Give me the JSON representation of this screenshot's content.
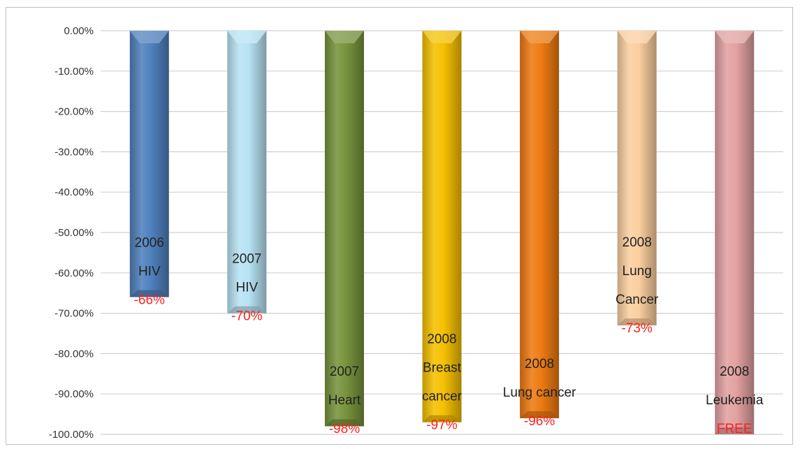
{
  "chart_data": {
    "type": "bar",
    "orientation": "vertical",
    "title": "",
    "xlabel": "",
    "ylabel": "",
    "ylim": [
      -100,
      0
    ],
    "yticks": [
      "0.00%",
      "-10.00%",
      "-20.00%",
      "-30.00%",
      "-40.00%",
      "-50.00%",
      "-60.00%",
      "-70.00%",
      "-80.00%",
      "-90.00%",
      "-100.00%"
    ],
    "grid": true,
    "legend": "none",
    "bars": [
      {
        "label_lines": [
          "2006",
          "HIV"
        ],
        "value_label": "-66%",
        "value": -66,
        "color": "#4f81bd"
      },
      {
        "label_lines": [
          "2007",
          "HIV"
        ],
        "value_label": "-70%",
        "value": -70,
        "color": "#b7e3f3"
      },
      {
        "label_lines": [
          "2007",
          "Heart"
        ],
        "value_label": "-98%",
        "value": -98,
        "color": "#77933c"
      },
      {
        "label_lines": [
          "2008",
          "Breast",
          "cancer"
        ],
        "value_label": "-97%",
        "value": -97,
        "color": "#f5c000"
      },
      {
        "label_lines": [
          "2008",
          "Lung cancer"
        ],
        "value_label": "-96%",
        "value": -96,
        "color": "#ee7b12"
      },
      {
        "label_lines": [
          "2008",
          "Lung",
          "Cancer"
        ],
        "value_label": "-73%",
        "value": -73,
        "color": "#fbcf9f"
      },
      {
        "label_lines": [
          "2008",
          "Leukemia"
        ],
        "value_label": "FREE",
        "value": -100,
        "color": "#e3a1a1"
      }
    ],
    "value_label_color": "#ff2020"
  }
}
